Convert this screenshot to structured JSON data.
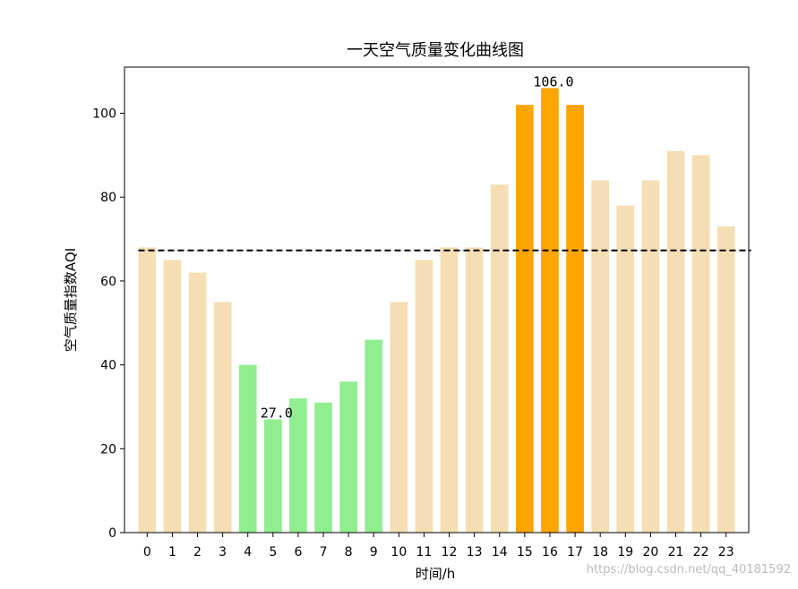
{
  "chart_data": {
    "type": "bar",
    "title": "一天空气质量变化曲线图",
    "xlabel": "时间/h",
    "ylabel": "空气质量指数AQI",
    "categories": [
      "0",
      "1",
      "2",
      "3",
      "4",
      "5",
      "6",
      "7",
      "8",
      "9",
      "10",
      "11",
      "12",
      "13",
      "14",
      "15",
      "16",
      "17",
      "18",
      "19",
      "20",
      "21",
      "22",
      "23"
    ],
    "values": [
      68,
      65,
      62,
      55,
      40,
      27,
      32,
      31,
      36,
      46,
      55,
      65,
      68,
      68,
      83,
      102,
      106,
      102,
      84,
      78,
      84,
      91,
      90,
      73
    ],
    "bar_colors": [
      "#f5deb3",
      "#f5deb3",
      "#f5deb3",
      "#f5deb3",
      "#90ee90",
      "#90ee90",
      "#90ee90",
      "#90ee90",
      "#90ee90",
      "#90ee90",
      "#f5deb3",
      "#f5deb3",
      "#f5deb3",
      "#f5deb3",
      "#f5deb3",
      "#ffa500",
      "#ffa500",
      "#ffa500",
      "#f5deb3",
      "#f5deb3",
      "#f5deb3",
      "#f5deb3",
      "#f5deb3",
      "#f5deb3"
    ],
    "annotations": [
      {
        "category": "5",
        "value": 27,
        "text": "27.0"
      },
      {
        "category": "16",
        "value": 106,
        "text": "106.0"
      }
    ],
    "reference_line": {
      "value": 67.3,
      "style": "dashed",
      "color": "#000000"
    },
    "ylim": [
      0,
      111
    ],
    "yticks": [
      0,
      20,
      40,
      60,
      80,
      100
    ],
    "grid": false
  },
  "watermark": "https://blog.csdn.net/qq_40181592"
}
